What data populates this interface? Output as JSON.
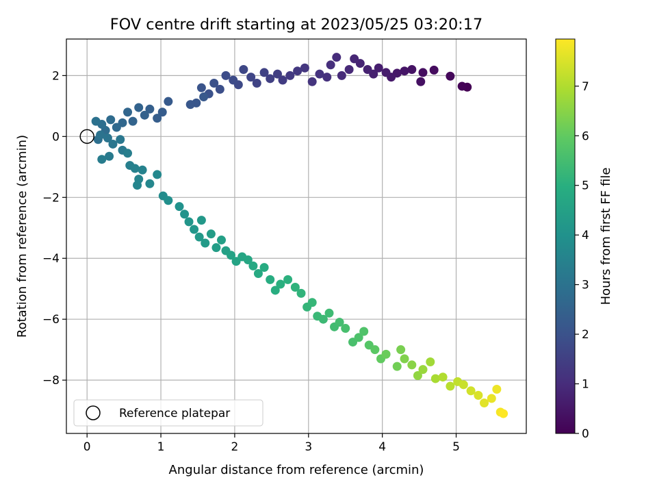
{
  "chart_data": {
    "type": "scatter",
    "title": "FOV centre drift starting at 2023/05/25 03:20:17",
    "xlabel": "Angular distance from reference (arcmin)",
    "ylabel": "Rotation from reference (arcmin)",
    "xlim": [
      -0.28,
      5.95
    ],
    "ylim": [
      -9.75,
      3.2
    ],
    "xticks": [
      0,
      1,
      2,
      3,
      4,
      5
    ],
    "yticks": [
      -8,
      -6,
      -4,
      -2,
      0,
      2
    ],
    "grid": true,
    "colorbar": {
      "label": "Hours from first FF file",
      "range": [
        0,
        7.95
      ],
      "ticks": [
        0,
        1,
        2,
        3,
        4,
        5,
        6,
        7
      ],
      "colormap": "viridis"
    },
    "legend": {
      "position": "lower-left",
      "entries": [
        "Reference platepar"
      ]
    },
    "reference_point": {
      "x": 0,
      "y": 0,
      "label": "Reference platepar"
    },
    "points": [
      {
        "x": 5.15,
        "y": 1.62,
        "t": 0.0
      },
      {
        "x": 5.08,
        "y": 1.65,
        "t": 0.05
      },
      {
        "x": 4.92,
        "y": 1.98,
        "t": 0.15
      },
      {
        "x": 4.7,
        "y": 2.18,
        "t": 0.25
      },
      {
        "x": 4.55,
        "y": 2.1,
        "t": 0.3
      },
      {
        "x": 4.52,
        "y": 1.8,
        "t": 0.35
      },
      {
        "x": 4.4,
        "y": 2.2,
        "t": 0.4
      },
      {
        "x": 4.3,
        "y": 2.15,
        "t": 0.45
      },
      {
        "x": 4.2,
        "y": 2.08,
        "t": 0.5
      },
      {
        "x": 4.12,
        "y": 1.95,
        "t": 0.55
      },
      {
        "x": 4.05,
        "y": 2.1,
        "t": 0.6
      },
      {
        "x": 3.95,
        "y": 2.25,
        "t": 0.65
      },
      {
        "x": 3.88,
        "y": 2.05,
        "t": 0.7
      },
      {
        "x": 3.8,
        "y": 2.2,
        "t": 0.75
      },
      {
        "x": 3.7,
        "y": 2.4,
        "t": 0.8
      },
      {
        "x": 3.62,
        "y": 2.55,
        "t": 0.85
      },
      {
        "x": 3.55,
        "y": 2.2,
        "t": 0.9
      },
      {
        "x": 3.45,
        "y": 2.0,
        "t": 0.95
      },
      {
        "x": 3.38,
        "y": 2.6,
        "t": 1.0
      },
      {
        "x": 3.3,
        "y": 2.35,
        "t": 1.05
      },
      {
        "x": 3.25,
        "y": 1.95,
        "t": 1.1
      },
      {
        "x": 3.15,
        "y": 2.05,
        "t": 1.15
      },
      {
        "x": 3.05,
        "y": 1.8,
        "t": 1.2
      },
      {
        "x": 2.95,
        "y": 2.25,
        "t": 1.25
      },
      {
        "x": 2.85,
        "y": 2.15,
        "t": 1.3
      },
      {
        "x": 2.75,
        "y": 2.0,
        "t": 1.35
      },
      {
        "x": 2.65,
        "y": 1.85,
        "t": 1.4
      },
      {
        "x": 2.58,
        "y": 2.05,
        "t": 1.45
      },
      {
        "x": 2.48,
        "y": 1.9,
        "t": 1.5
      },
      {
        "x": 2.4,
        "y": 2.1,
        "t": 1.55
      },
      {
        "x": 2.3,
        "y": 1.75,
        "t": 1.6
      },
      {
        "x": 2.22,
        "y": 1.95,
        "t": 1.65
      },
      {
        "x": 2.12,
        "y": 2.2,
        "t": 1.7
      },
      {
        "x": 2.05,
        "y": 1.7,
        "t": 1.75
      },
      {
        "x": 1.98,
        "y": 1.85,
        "t": 1.8
      },
      {
        "x": 1.88,
        "y": 2.0,
        "t": 1.85
      },
      {
        "x": 1.8,
        "y": 1.55,
        "t": 1.9
      },
      {
        "x": 1.72,
        "y": 1.75,
        "t": 1.95
      },
      {
        "x": 1.65,
        "y": 1.4,
        "t": 2.0
      },
      {
        "x": 1.55,
        "y": 1.6,
        "t": 2.05
      },
      {
        "x": 1.48,
        "y": 1.1,
        "t": 2.1
      },
      {
        "x": 1.4,
        "y": 1.05,
        "t": 2.15
      },
      {
        "x": 1.58,
        "y": 1.3,
        "t": 2.2
      },
      {
        "x": 1.1,
        "y": 1.15,
        "t": 2.25
      },
      {
        "x": 1.02,
        "y": 0.8,
        "t": 2.3
      },
      {
        "x": 0.95,
        "y": 0.6,
        "t": 2.35
      },
      {
        "x": 0.85,
        "y": 0.9,
        "t": 2.4
      },
      {
        "x": 0.78,
        "y": 0.7,
        "t": 2.45
      },
      {
        "x": 0.7,
        "y": 0.95,
        "t": 2.5
      },
      {
        "x": 0.62,
        "y": 0.5,
        "t": 2.55
      },
      {
        "x": 0.55,
        "y": 0.8,
        "t": 2.6
      },
      {
        "x": 0.48,
        "y": 0.45,
        "t": 2.65
      },
      {
        "x": 0.4,
        "y": 0.3,
        "t": 2.7
      },
      {
        "x": 0.32,
        "y": 0.55,
        "t": 2.75
      },
      {
        "x": 0.25,
        "y": 0.2,
        "t": 2.8
      },
      {
        "x": 0.2,
        "y": 0.4,
        "t": 2.85
      },
      {
        "x": 0.15,
        "y": -0.1,
        "t": 2.9
      },
      {
        "x": 0.12,
        "y": 0.5,
        "t": 2.95
      },
      {
        "x": 0.18,
        "y": 0.05,
        "t": 3.0
      },
      {
        "x": 0.28,
        "y": -0.05,
        "t": 3.05
      },
      {
        "x": 0.35,
        "y": -0.25,
        "t": 3.1
      },
      {
        "x": 0.45,
        "y": -0.1,
        "t": 3.15
      },
      {
        "x": 0.48,
        "y": -0.45,
        "t": 3.2
      },
      {
        "x": 0.3,
        "y": -0.65,
        "t": 3.25
      },
      {
        "x": 0.2,
        "y": -0.75,
        "t": 3.3
      },
      {
        "x": 0.55,
        "y": -0.55,
        "t": 3.35
      },
      {
        "x": 0.58,
        "y": -0.95,
        "t": 3.4
      },
      {
        "x": 0.65,
        "y": -1.05,
        "t": 3.45
      },
      {
        "x": 0.75,
        "y": -1.1,
        "t": 3.5
      },
      {
        "x": 0.7,
        "y": -1.4,
        "t": 3.55
      },
      {
        "x": 0.68,
        "y": -1.6,
        "t": 3.6
      },
      {
        "x": 0.85,
        "y": -1.55,
        "t": 3.65
      },
      {
        "x": 0.95,
        "y": -1.25,
        "t": 3.7
      },
      {
        "x": 1.03,
        "y": -1.95,
        "t": 3.8
      },
      {
        "x": 1.1,
        "y": -2.1,
        "t": 3.9
      },
      {
        "x": 1.25,
        "y": -2.3,
        "t": 4.0
      },
      {
        "x": 1.32,
        "y": -2.55,
        "t": 4.05
      },
      {
        "x": 1.38,
        "y": -2.8,
        "t": 4.1
      },
      {
        "x": 1.45,
        "y": -3.05,
        "t": 4.15
      },
      {
        "x": 1.55,
        "y": -2.75,
        "t": 4.2
      },
      {
        "x": 1.52,
        "y": -3.3,
        "t": 4.25
      },
      {
        "x": 1.6,
        "y": -3.5,
        "t": 4.3
      },
      {
        "x": 1.68,
        "y": -3.2,
        "t": 4.35
      },
      {
        "x": 1.75,
        "y": -3.65,
        "t": 4.4
      },
      {
        "x": 1.82,
        "y": -3.4,
        "t": 4.45
      },
      {
        "x": 1.88,
        "y": -3.75,
        "t": 4.5
      },
      {
        "x": 1.95,
        "y": -3.9,
        "t": 4.55
      },
      {
        "x": 2.02,
        "y": -4.1,
        "t": 4.6
      },
      {
        "x": 2.1,
        "y": -3.95,
        "t": 4.65
      },
      {
        "x": 2.18,
        "y": -4.05,
        "t": 4.7
      },
      {
        "x": 2.25,
        "y": -4.25,
        "t": 4.75
      },
      {
        "x": 2.32,
        "y": -4.5,
        "t": 4.8
      },
      {
        "x": 2.4,
        "y": -4.3,
        "t": 4.85
      },
      {
        "x": 2.48,
        "y": -4.7,
        "t": 4.9
      },
      {
        "x": 2.55,
        "y": -5.05,
        "t": 4.95
      },
      {
        "x": 2.62,
        "y": -4.85,
        "t": 5.0
      },
      {
        "x": 2.72,
        "y": -4.7,
        "t": 5.05
      },
      {
        "x": 2.82,
        "y": -4.95,
        "t": 5.1
      },
      {
        "x": 2.9,
        "y": -5.15,
        "t": 5.15
      },
      {
        "x": 2.98,
        "y": -5.6,
        "t": 5.2
      },
      {
        "x": 3.05,
        "y": -5.45,
        "t": 5.25
      },
      {
        "x": 3.12,
        "y": -5.9,
        "t": 5.3
      },
      {
        "x": 3.2,
        "y": -6.0,
        "t": 5.35
      },
      {
        "x": 3.28,
        "y": -5.8,
        "t": 5.4
      },
      {
        "x": 3.35,
        "y": -6.25,
        "t": 5.45
      },
      {
        "x": 3.42,
        "y": -6.1,
        "t": 5.5
      },
      {
        "x": 3.5,
        "y": -6.3,
        "t": 5.55
      },
      {
        "x": 3.6,
        "y": -6.75,
        "t": 5.6
      },
      {
        "x": 3.68,
        "y": -6.6,
        "t": 5.65
      },
      {
        "x": 3.75,
        "y": -6.4,
        "t": 5.7
      },
      {
        "x": 3.82,
        "y": -6.85,
        "t": 5.8
      },
      {
        "x": 3.9,
        "y": -7.0,
        "t": 5.9
      },
      {
        "x": 3.98,
        "y": -7.3,
        "t": 6.0
      },
      {
        "x": 4.05,
        "y": -7.15,
        "t": 6.1
      },
      {
        "x": 4.2,
        "y": -7.55,
        "t": 6.2
      },
      {
        "x": 4.25,
        "y": -7.0,
        "t": 6.3
      },
      {
        "x": 4.3,
        "y": -7.3,
        "t": 6.4
      },
      {
        "x": 4.4,
        "y": -7.5,
        "t": 6.5
      },
      {
        "x": 4.48,
        "y": -7.85,
        "t": 6.6
      },
      {
        "x": 4.55,
        "y": -7.65,
        "t": 6.7
      },
      {
        "x": 4.65,
        "y": -7.4,
        "t": 6.8
      },
      {
        "x": 4.72,
        "y": -7.95,
        "t": 6.9
      },
      {
        "x": 4.82,
        "y": -7.9,
        "t": 7.0
      },
      {
        "x": 4.92,
        "y": -8.2,
        "t": 7.1
      },
      {
        "x": 5.02,
        "y": -8.05,
        "t": 7.2
      },
      {
        "x": 5.1,
        "y": -8.15,
        "t": 7.3
      },
      {
        "x": 5.2,
        "y": -8.35,
        "t": 7.4
      },
      {
        "x": 5.3,
        "y": -8.5,
        "t": 7.5
      },
      {
        "x": 5.38,
        "y": -8.75,
        "t": 7.6
      },
      {
        "x": 5.48,
        "y": -8.6,
        "t": 7.7
      },
      {
        "x": 5.55,
        "y": -8.3,
        "t": 7.75
      },
      {
        "x": 5.6,
        "y": -9.05,
        "t": 7.85
      },
      {
        "x": 5.64,
        "y": -9.1,
        "t": 7.95
      }
    ]
  }
}
